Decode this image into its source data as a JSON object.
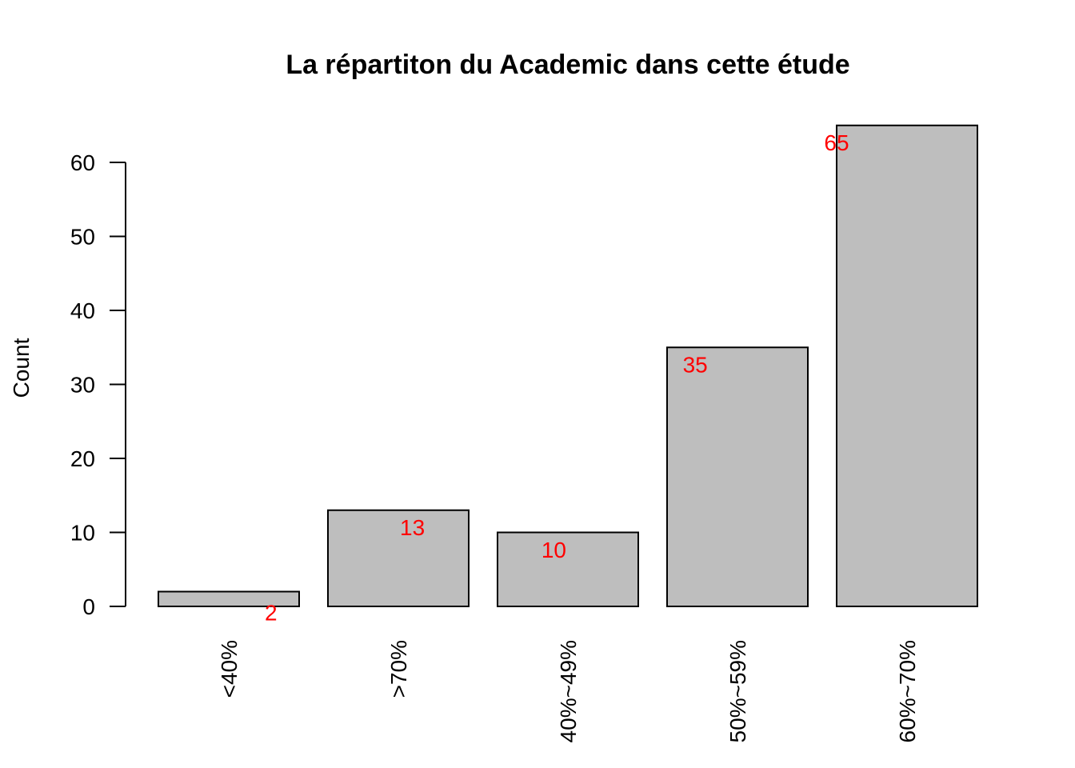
{
  "chart_data": {
    "type": "bar",
    "title": "La répartiton du Academic dans cette étude",
    "xlabel": "",
    "ylabel": "Count",
    "categories": [
      "<40%",
      ">70%",
      "40%~49%",
      "50%~59%",
      "60%~70%"
    ],
    "values": [
      2,
      13,
      10,
      35,
      65
    ],
    "data_labels": [
      "2",
      "13",
      "10",
      "35",
      "65"
    ],
    "ylim": [
      0,
      65
    ],
    "yticks": [
      0,
      10,
      20,
      30,
      40,
      50,
      60
    ],
    "grid": false,
    "legend": "none",
    "colors": {
      "bar_fill": "#bebebe",
      "bar_stroke": "#000000",
      "label": "#ff0000",
      "axis": "#000000"
    }
  }
}
